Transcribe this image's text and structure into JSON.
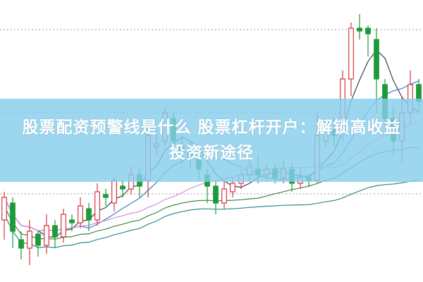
{
  "title": "股票配资预警线是什么 股票杠杆开户：解锁高收益投资新途径",
  "colors": {
    "up": "#d9363e",
    "down": "#1f9a3a",
    "banner": "#87ceeb",
    "ma": [
      "#334455",
      "#3a7fc8",
      "#d88ad8",
      "#3f8a3f",
      "#2e8c8c"
    ]
  },
  "chart_data": {
    "type": "candlestick",
    "title": "",
    "xlabel": "",
    "ylabel": "",
    "ylim": [
      0,
      100
    ],
    "grid": "dotted horizontal",
    "moving_averages": [
      5,
      10,
      20,
      30,
      60
    ],
    "candles": [
      [
        22,
        30,
        32,
        15
      ],
      [
        28,
        18,
        30,
        12
      ],
      [
        15,
        12,
        18,
        8
      ],
      [
        12,
        18,
        22,
        6
      ],
      [
        17,
        13,
        18,
        9
      ],
      [
        13,
        20,
        24,
        10
      ],
      [
        20,
        16,
        22,
        12
      ],
      [
        16,
        24,
        26,
        14
      ],
      [
        22,
        21,
        24,
        18
      ],
      [
        21,
        27,
        30,
        19
      ],
      [
        26,
        22,
        28,
        18
      ],
      [
        22,
        32,
        35,
        20
      ],
      [
        31,
        30,
        33,
        27
      ],
      [
        28,
        36,
        37,
        25
      ],
      [
        34,
        33,
        36,
        30
      ],
      [
        33,
        38,
        41,
        31
      ],
      [
        38,
        34,
        40,
        30
      ],
      [
        36,
        52,
        58,
        30
      ],
      [
        48,
        49,
        54,
        45
      ],
      [
        50,
        60,
        62,
        48
      ],
      [
        58,
        50,
        60,
        45
      ],
      [
        48,
        46,
        52,
        42
      ],
      [
        46,
        44,
        50,
        40
      ],
      [
        44,
        40,
        46,
        36
      ],
      [
        38,
        34,
        40,
        28
      ],
      [
        34,
        28,
        36,
        24
      ],
      [
        28,
        33,
        36,
        26
      ],
      [
        32,
        35,
        37,
        30
      ],
      [
        35,
        38,
        40,
        33
      ],
      [
        38,
        41,
        44,
        36
      ],
      [
        40,
        38,
        45,
        35
      ],
      [
        38,
        40,
        42,
        36
      ],
      [
        40,
        37,
        42,
        35
      ],
      [
        37,
        40,
        43,
        35
      ],
      [
        40,
        35,
        42,
        32
      ],
      [
        35,
        37,
        40,
        33
      ],
      [
        37,
        36,
        38,
        34
      ],
      [
        36,
        52,
        60,
        35
      ],
      [
        50,
        55,
        58,
        48
      ],
      [
        54,
        52,
        58,
        48
      ],
      [
        54,
        72,
        75,
        50
      ],
      [
        72,
        90,
        92,
        66
      ],
      [
        90,
        89,
        95,
        86
      ],
      [
        90,
        88,
        91,
        80
      ],
      [
        86,
        72,
        90,
        60
      ],
      [
        70,
        58,
        72,
        55
      ],
      [
        58,
        50,
        62,
        45
      ],
      [
        50,
        60,
        66,
        42
      ],
      [
        60,
        70,
        75,
        56
      ],
      [
        70,
        64,
        72,
        60
      ]
    ]
  }
}
